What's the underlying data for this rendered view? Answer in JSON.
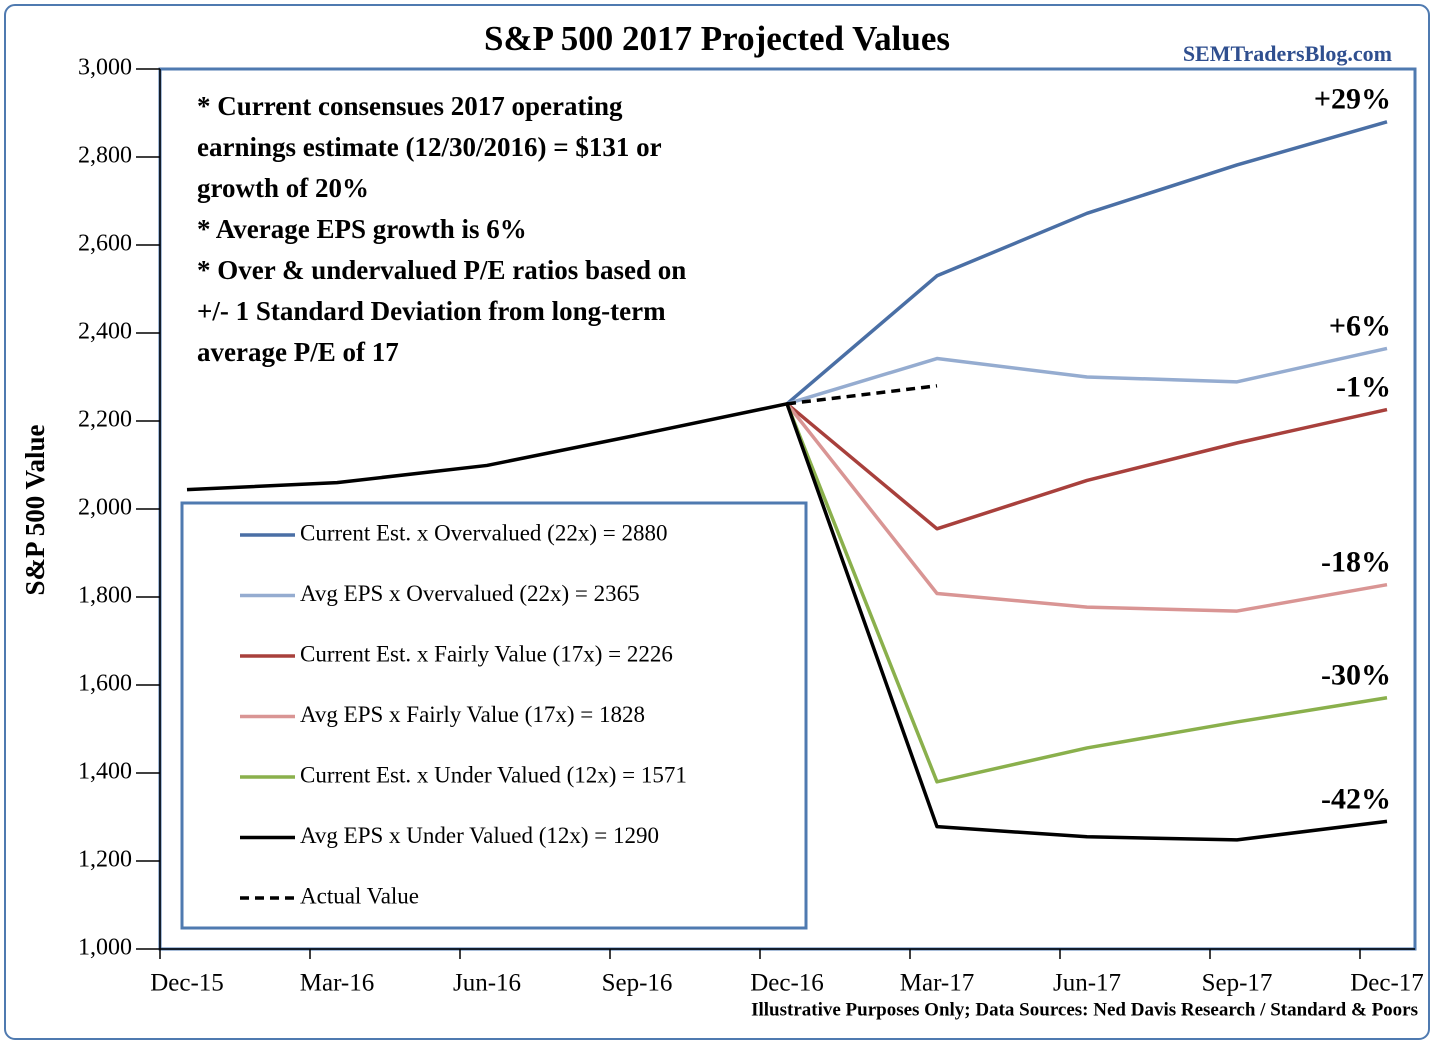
{
  "chart_data": {
    "type": "line",
    "title": "S&P 500 2017 Projected Values",
    "subtitle": "SEMTradersBlog.com",
    "source": "Illustrative Purposes Only; Data Sources: Ned Davis Research / Standard & Poors",
    "y_label": "S&P 500 Value",
    "notes": [
      "* Current consensues 2017 operating",
      "earnings estimate (12/30/2016) = $131 or",
      "growth of 20%",
      "* Average EPS growth is 6%",
      "* Over & undervalued P/E ratios based on",
      "+/- 1 Standard Deviation from long-term",
      "average P/E of 17"
    ],
    "categories": [
      "Dec-15",
      "Mar-16",
      "Jun-16",
      "Sep-16",
      "Dec-16",
      "Mar-17",
      "Jun-17",
      "Sep-17",
      "Dec-17"
    ],
    "ylim": [
      1000,
      3000
    ],
    "yticks": [
      {
        "value": 1000,
        "label": "1,000"
      },
      {
        "value": 1200,
        "label": "1,200"
      },
      {
        "value": 1400,
        "label": "1,400"
      },
      {
        "value": 1600,
        "label": "1,600"
      },
      {
        "value": 1800,
        "label": "1,800"
      },
      {
        "value": 2000,
        "label": "2,000"
      },
      {
        "value": 2200,
        "label": "2,200"
      },
      {
        "value": 2400,
        "label": "2,400"
      },
      {
        "value": 2600,
        "label": "2,600"
      },
      {
        "value": 2800,
        "label": "2,800"
      },
      {
        "value": 3000,
        "label": "3,000"
      }
    ],
    "series": [
      {
        "name": "Current Est. x Overvalued (22x) = 2880",
        "color": "#4a6fa5",
        "end_label": "+29%",
        "values": [
          null,
          null,
          null,
          null,
          2239,
          2530,
          2672,
          2782,
          2880
        ]
      },
      {
        "name": "Avg EPS x Overvalued (22x) = 2365",
        "color": "#95acd0",
        "end_label": "+6%",
        "values": [
          null,
          null,
          null,
          null,
          2239,
          2342,
          2300,
          2289,
          2365
        ]
      },
      {
        "name": "Current Est. x Fairly Value (17x) = 2226",
        "color": "#a8403c",
        "end_label": "-1%",
        "values": [
          null,
          null,
          null,
          null,
          2239,
          1955,
          2065,
          2150,
          2226
        ]
      },
      {
        "name": "Avg EPS x Fairly Value (17x) = 1828",
        "color": "#d99594",
        "end_label": "-18%",
        "values": [
          null,
          null,
          null,
          null,
          2239,
          1808,
          1777,
          1768,
          1828
        ]
      },
      {
        "name": "Current Est. x Under Valued (12x) = 1571",
        "color": "#8ab04c",
        "end_label": "-30%",
        "values": [
          null,
          null,
          null,
          null,
          2239,
          1380,
          1457,
          1516,
          1571
        ]
      },
      {
        "name": "Avg EPS x Under Valued (12x) = 1290",
        "color": "#000000",
        "end_label": "-42%",
        "values": [
          2044,
          2060,
          2099,
          2168,
          2239,
          1278,
          1255,
          1248,
          1290
        ]
      },
      {
        "name": "Actual Value",
        "color": "#000000",
        "dashed": true,
        "values": [
          null,
          null,
          null,
          null,
          2239,
          2280,
          null,
          null,
          null
        ]
      }
    ]
  }
}
